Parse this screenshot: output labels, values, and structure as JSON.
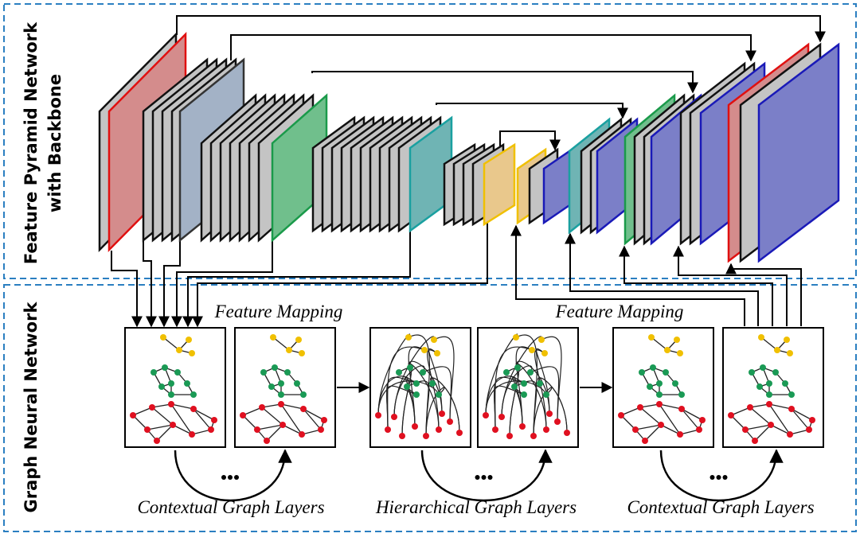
{
  "top_section": {
    "label_lines": [
      "Feature Pyramid Network",
      "with Backbone"
    ]
  },
  "bottom_section": {
    "label": "Graph Neural Network"
  },
  "annotations": {
    "feature_mapping_left": "Feature Mapping",
    "feature_mapping_right": "Feature Mapping"
  },
  "layer_groups": [
    "Contextual Graph Layers",
    "Hierarchical Graph Layers",
    "Contextual Graph Layers"
  ]
}
